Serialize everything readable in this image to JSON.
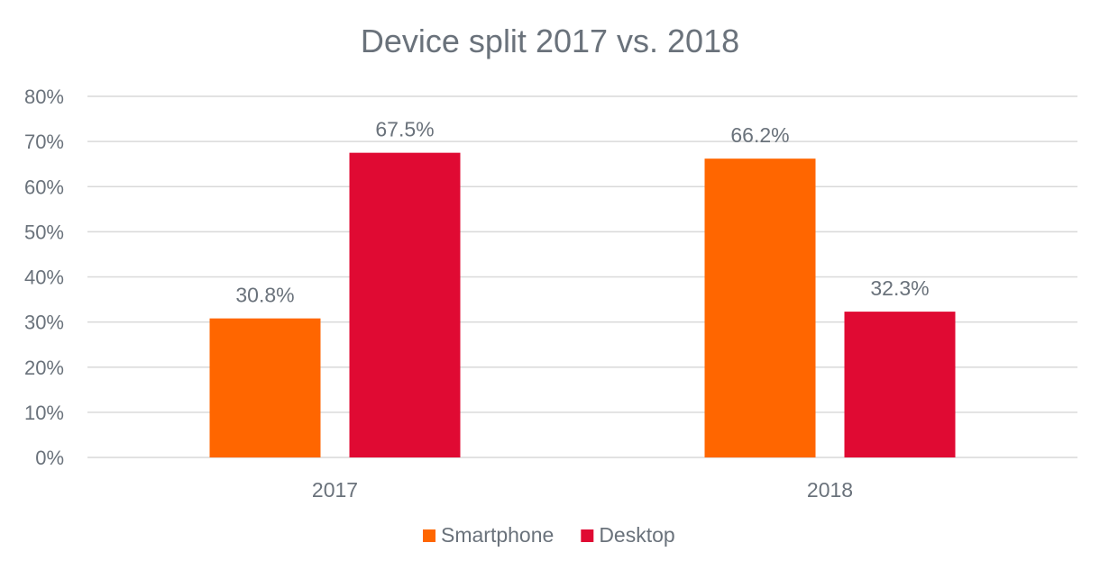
{
  "chart_data": {
    "type": "bar",
    "title": "Device split 2017 vs. 2018",
    "categories": [
      "2017",
      "2018"
    ],
    "series": [
      {
        "name": "Smartphone",
        "color": "#ff6600",
        "values": [
          30.8,
          66.2
        ],
        "labels": [
          "30.8%",
          "66.2%"
        ]
      },
      {
        "name": "Desktop",
        "color": "#e00a33",
        "values": [
          67.5,
          32.3
        ],
        "labels": [
          "67.5%",
          "32.3%"
        ]
      }
    ],
    "ylim": [
      0,
      80
    ],
    "yticks": [
      0,
      10,
      20,
      30,
      40,
      50,
      60,
      70,
      80
    ],
    "ytick_labels": [
      "0%",
      "10%",
      "20%",
      "30%",
      "40%",
      "50%",
      "60%",
      "70%",
      "80%"
    ],
    "grid": true,
    "legend_position": "bottom-center",
    "xlabel": "",
    "ylabel": ""
  }
}
